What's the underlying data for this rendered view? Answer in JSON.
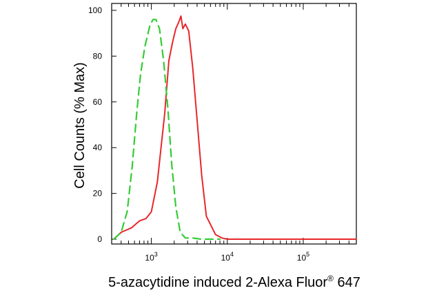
{
  "chart_data": {
    "type": "line",
    "xlabel": "5-azacytidine induced 2-Alexa Fluor® 647",
    "xlabel_parts": {
      "main": "5-azacytidine induced 2-Alexa Fluor",
      "sup": "®",
      "tail": " 647"
    },
    "ylabel": "Cell Counts (% Max)",
    "x_scale": "log",
    "xlim": [
      300,
      500000
    ],
    "ylim": [
      0,
      100
    ],
    "y_ticks": [
      0,
      20,
      40,
      60,
      80,
      100
    ],
    "y_tick_labels": [
      "0",
      "20",
      "40",
      "60",
      "80",
      "100"
    ],
    "x_major_ticks": [
      1000,
      10000,
      100000
    ],
    "x_tick_labels": [
      {
        "base": "10",
        "exp": "3"
      },
      {
        "base": "10",
        "exp": "4"
      },
      {
        "base": "10",
        "exp": "5"
      }
    ],
    "grid": false,
    "legend": "none",
    "series": [
      {
        "color": "#e8262a",
        "style": "solid",
        "points": [
          [
            320,
            0
          ],
          [
            400,
            3
          ],
          [
            550,
            5
          ],
          [
            700,
            8
          ],
          [
            850,
            9
          ],
          [
            1000,
            12
          ],
          [
            1200,
            25
          ],
          [
            1500,
            55
          ],
          [
            1700,
            78
          ],
          [
            1900,
            86
          ],
          [
            2100,
            92
          ],
          [
            2300,
            95
          ],
          [
            2450,
            97.5
          ],
          [
            2600,
            92
          ],
          [
            2800,
            94
          ],
          [
            3100,
            91
          ],
          [
            3500,
            75
          ],
          [
            4000,
            52
          ],
          [
            4600,
            28
          ],
          [
            5300,
            10
          ],
          [
            6100,
            6
          ],
          [
            7000,
            2
          ],
          [
            8500,
            0.5
          ],
          [
            10000,
            0
          ],
          [
            500000,
            0
          ]
        ]
      },
      {
        "color": "#33cc33",
        "style": "dashed",
        "points": [
          [
            320,
            0
          ],
          [
            400,
            3
          ],
          [
            480,
            12
          ],
          [
            560,
            32
          ],
          [
            640,
            55
          ],
          [
            720,
            72
          ],
          [
            820,
            84
          ],
          [
            950,
            93
          ],
          [
            1050,
            96
          ],
          [
            1150,
            96
          ],
          [
            1280,
            92
          ],
          [
            1450,
            78
          ],
          [
            1650,
            57
          ],
          [
            1850,
            33
          ],
          [
            2100,
            14
          ],
          [
            2400,
            3
          ],
          [
            2800,
            0.5
          ],
          [
            3500,
            0.5
          ],
          [
            4500,
            0
          ],
          [
            8000,
            0
          ]
        ]
      }
    ]
  }
}
